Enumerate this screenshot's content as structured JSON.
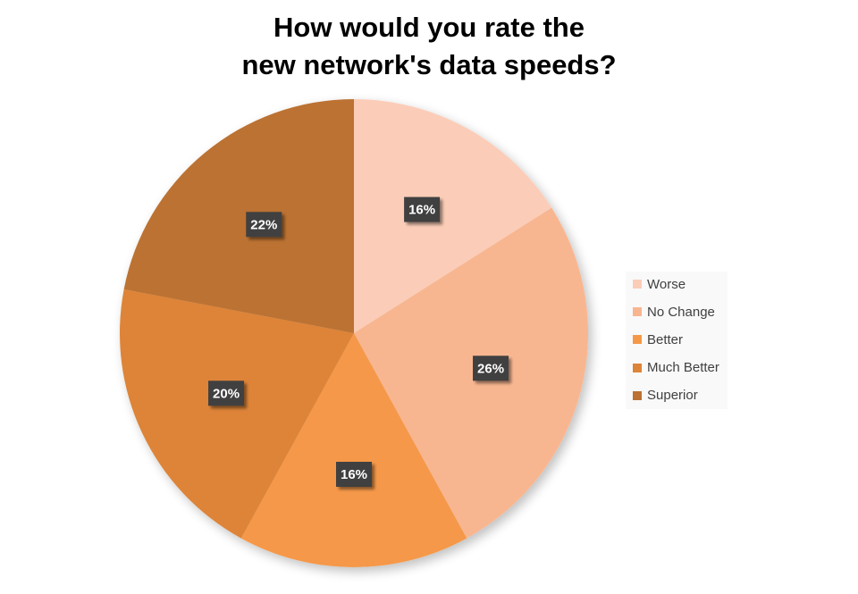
{
  "chart_data": {
    "type": "pie",
    "title_lines": [
      "How would you rate the",
      "new network's data speeds?"
    ],
    "slices": [
      {
        "label": "Worse",
        "value": 16,
        "display": "16%",
        "color": "#fbcdb8"
      },
      {
        "label": "No Change",
        "value": 26,
        "display": "26%",
        "color": "#f8b690"
      },
      {
        "label": "Better",
        "value": 16,
        "display": "16%",
        "color": "#f59848"
      },
      {
        "label": "Much Better",
        "value": 20,
        "display": "20%",
        "color": "#dd8438"
      },
      {
        "label": "Superior",
        "value": 22,
        "display": "22%",
        "color": "#bc7233"
      }
    ],
    "data_label_style": {
      "background": "#404040",
      "text_color": "#ffffff"
    },
    "legend_position": "right"
  }
}
